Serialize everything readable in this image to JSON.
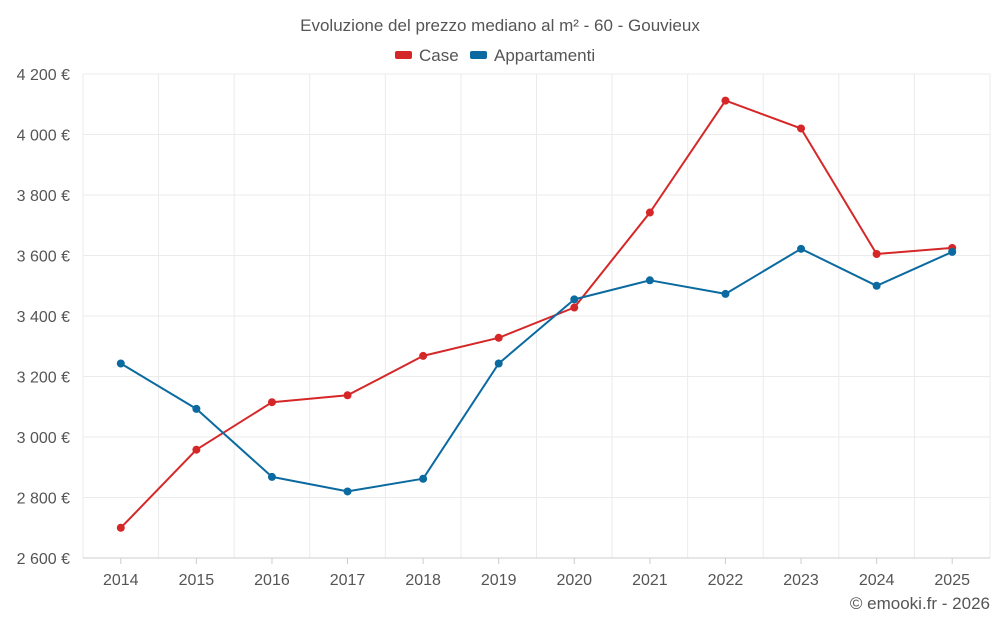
{
  "chart_data": {
    "type": "line",
    "title": "Evoluzione del prezzo mediano al m² - 60 - Gouvieux",
    "xlabel": "",
    "ylabel": "",
    "categories": [
      "2014",
      "2015",
      "2016",
      "2017",
      "2018",
      "2019",
      "2020",
      "2021",
      "2022",
      "2023",
      "2024",
      "2025"
    ],
    "series": [
      {
        "name": "Case",
        "color": "#d62728",
        "values": [
          2700,
          2958,
          3115,
          3138,
          3268,
          3328,
          3428,
          3742,
          4112,
          4020,
          3605,
          3625
        ]
      },
      {
        "name": "Appartamenti",
        "color": "#0b6aa0",
        "values": [
          3243,
          3093,
          2868,
          2820,
          2862,
          3243,
          3455,
          3518,
          3473,
          3622,
          3500,
          3612
        ]
      }
    ],
    "ylim": [
      2600,
      4200
    ],
    "yticks": [
      2600,
      2800,
      3000,
      3200,
      3400,
      3600,
      3800,
      4000,
      4200
    ],
    "ytick_labels": [
      "2 600 €",
      "2 800 €",
      "3 000 €",
      "3 200 €",
      "3 400 €",
      "3 600 €",
      "3 800 €",
      "4 000 €",
      "4 200 €"
    ],
    "grid": true,
    "legend": "top-center"
  },
  "footer": {
    "credit": "© emooki.fr - 2026"
  },
  "colors": {
    "grid": "#ebebeb",
    "axis": "#cccccc",
    "text": "#555555"
  }
}
